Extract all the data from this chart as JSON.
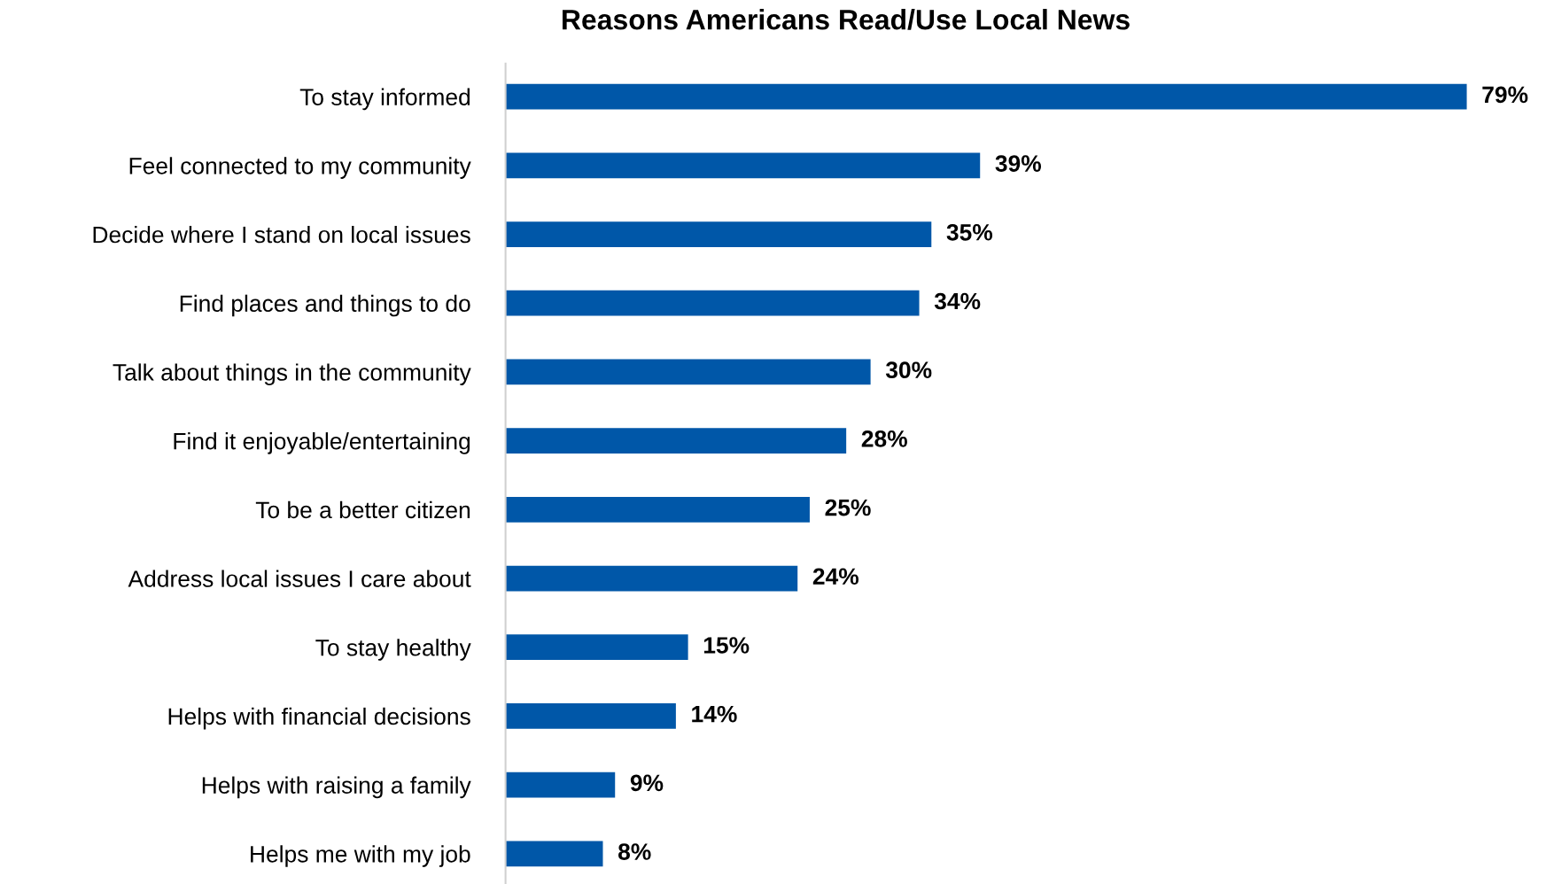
{
  "chart_data": {
    "type": "bar",
    "orientation": "horizontal",
    "title": "Reasons Americans Read/Use Local News",
    "categories": [
      "To stay informed",
      "Feel connected to my community",
      "Decide where I stand on local issues",
      "Find places and things to do",
      "Talk about things in the community",
      "Find it enjoyable/entertaining",
      "To be a better citizen",
      "Address local issues I care about",
      "To stay healthy",
      "Helps with financial decisions",
      "Helps with raising a family",
      "Helps me with my job"
    ],
    "values": [
      79,
      39,
      35,
      34,
      30,
      28,
      25,
      24,
      15,
      14,
      9,
      8
    ],
    "value_labels": [
      "79%",
      "39%",
      "35%",
      "34%",
      "30%",
      "28%",
      "25%",
      "24%",
      "15%",
      "14%",
      "9%",
      "8%"
    ],
    "color": "#0057a8",
    "tick_labels": "y"
  }
}
